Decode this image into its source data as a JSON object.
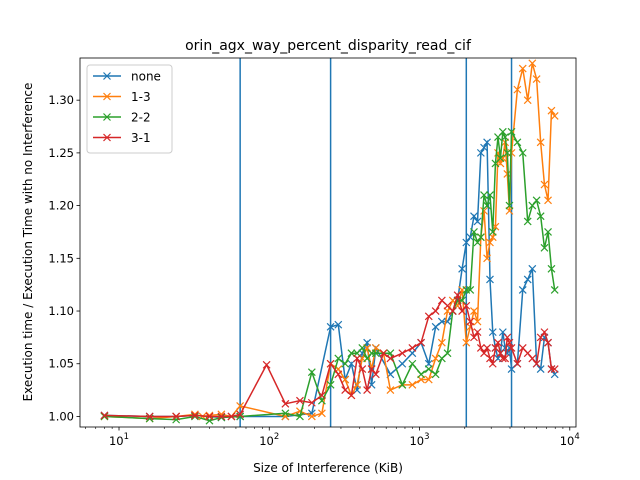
{
  "chart_data": {
    "type": "line",
    "title": "orin_agx_way_percent_disparity_read_cif",
    "xlabel": "Size of Interference (KiB)",
    "ylabel": "Execution time / Execution Time with no Interference",
    "xscale": "log",
    "xlim": [
      5.5,
      11000
    ],
    "ylim": [
      0.99,
      1.34
    ],
    "yticks": [
      1.0,
      1.05,
      1.1,
      1.15,
      1.2,
      1.25,
      1.3
    ],
    "ytick_labels": [
      "1.00",
      "1.05",
      "1.10",
      "1.15",
      "1.20",
      "1.25",
      "1.30"
    ],
    "xticks": [
      10,
      100,
      1000,
      10000
    ],
    "xtick_labels": [
      [
        "10",
        "1"
      ],
      [
        "10",
        "2"
      ],
      [
        "10",
        "3"
      ],
      [
        "10",
        "4"
      ]
    ],
    "vlines": [
      64,
      256,
      2048,
      4096
    ],
    "vline_color": "#1f77b4",
    "legend_position": "upper-left",
    "grid": false,
    "marker": "x",
    "series": [
      {
        "name": "none",
        "color": "#1f77b4",
        "x": [
          8,
          16,
          24,
          32,
          40,
          48,
          56,
          64,
          128,
          192,
          256,
          288,
          320,
          352,
          384,
          416,
          448,
          480,
          512,
          640,
          768,
          896,
          1024,
          1152,
          1280,
          1408,
          1536,
          1664,
          1792,
          1920,
          2048,
          2176,
          2304,
          2432,
          2560,
          2688,
          2816,
          2944,
          3072,
          3200,
          3328,
          3456,
          3584,
          3712,
          3840,
          3968,
          4096,
          4480,
          4864,
          5248,
          5632,
          6016,
          6400,
          6784,
          7168,
          7552,
          7936
        ],
        "y": [
          1.001,
          1.0,
          1.0,
          1.001,
          1.0,
          0.999,
          1.0,
          1.0,
          1.0,
          1.003,
          1.085,
          1.087,
          1.035,
          1.05,
          1.025,
          1.06,
          1.07,
          1.03,
          1.065,
          1.04,
          1.05,
          1.06,
          1.07,
          1.05,
          1.085,
          1.09,
          1.09,
          1.1,
          1.11,
          1.14,
          1.165,
          1.17,
          1.19,
          1.185,
          1.25,
          1.255,
          1.26,
          1.13,
          1.08,
          1.065,
          1.055,
          1.06,
          1.08,
          1.065,
          1.06,
          1.065,
          1.045,
          1.05,
          1.12,
          1.13,
          1.14,
          1.05,
          1.045,
          1.075,
          1.07,
          1.045,
          1.04
        ]
      },
      {
        "name": "1-3",
        "color": "#ff7f0e",
        "x": [
          8,
          16,
          24,
          32,
          36,
          40,
          48,
          56,
          64,
          128,
          160,
          192,
          224,
          256,
          288,
          320,
          352,
          384,
          416,
          448,
          480,
          512,
          576,
          640,
          768,
          896,
          1024,
          1152,
          1280,
          1408,
          1536,
          1664,
          1792,
          1920,
          2048,
          2176,
          2304,
          2432,
          2560,
          2688,
          2816,
          2944,
          3072,
          3200,
          3328,
          3456,
          3584,
          3712,
          3840,
          3968,
          4096,
          4480,
          4864,
          5248,
          5632,
          6016,
          6400,
          6784,
          7168,
          7552,
          7936
        ],
        "y": [
          1.0,
          0.998,
          1.0,
          1.002,
          1.0,
          1.001,
          1.002,
          1.0,
          1.01,
          1.0,
          1.005,
          1.0,
          1.003,
          1.05,
          1.045,
          1.035,
          1.02,
          1.03,
          1.055,
          1.065,
          1.045,
          1.065,
          1.06,
          1.025,
          1.03,
          1.03,
          1.035,
          1.035,
          1.055,
          1.07,
          1.1,
          1.11,
          1.105,
          1.12,
          1.07,
          1.085,
          1.1,
          1.09,
          1.17,
          1.195,
          1.15,
          1.165,
          1.17,
          1.18,
          1.25,
          1.24,
          1.245,
          1.26,
          1.23,
          1.195,
          1.25,
          1.31,
          1.33,
          1.3,
          1.335,
          1.32,
          1.26,
          1.22,
          1.205,
          1.29,
          1.285
        ]
      },
      {
        "name": "2-2",
        "color": "#2ca02c",
        "x": [
          8,
          16,
          24,
          32,
          40,
          48,
          64,
          128,
          160,
          192,
          224,
          256,
          288,
          320,
          352,
          384,
          416,
          448,
          480,
          512,
          640,
          768,
          896,
          1024,
          1152,
          1280,
          1408,
          1536,
          1664,
          1792,
          1920,
          2048,
          2176,
          2304,
          2432,
          2560,
          2688,
          2816,
          2944,
          3072,
          3200,
          3328,
          3456,
          3584,
          3712,
          3840,
          3968,
          4096,
          4480,
          4864,
          5248,
          5632,
          6016,
          6400,
          6784,
          7168,
          7552,
          7936
        ],
        "y": [
          1.0,
          0.998,
          0.997,
          1.0,
          0.996,
          0.999,
          1.0,
          1.003,
          1.0,
          1.042,
          1.015,
          1.03,
          1.055,
          1.05,
          1.06,
          1.06,
          1.065,
          1.055,
          1.06,
          1.06,
          1.06,
          1.03,
          1.05,
          1.04,
          1.045,
          1.04,
          1.055,
          1.06,
          1.1,
          1.11,
          1.11,
          1.12,
          1.12,
          1.175,
          1.165,
          1.17,
          1.21,
          1.2,
          1.21,
          1.175,
          1.24,
          1.265,
          1.245,
          1.27,
          1.265,
          1.25,
          1.2,
          1.27,
          1.26,
          1.25,
          1.185,
          1.2,
          1.205,
          1.19,
          1.16,
          1.175,
          1.14,
          1.12
        ]
      },
      {
        "name": "3-1",
        "color": "#d62728",
        "x": [
          8,
          16,
          24,
          32,
          40,
          48,
          56,
          64,
          96,
          128,
          160,
          192,
          224,
          256,
          288,
          320,
          352,
          384,
          416,
          448,
          480,
          512,
          576,
          640,
          768,
          896,
          1024,
          1152,
          1280,
          1408,
          1536,
          1664,
          1792,
          1920,
          2048,
          2176,
          2304,
          2432,
          2560,
          2688,
          2816,
          2944,
          3072,
          3200,
          3328,
          3456,
          3584,
          3712,
          3840,
          3968,
          4096,
          4480,
          4864,
          5248,
          5632,
          6016,
          6400,
          6784,
          7168,
          7552,
          7936
        ],
        "y": [
          1.001,
          1.0,
          1.0,
          1.001,
          1.0,
          1.0,
          1.0,
          1.002,
          1.049,
          1.012,
          1.015,
          1.013,
          1.02,
          1.05,
          1.04,
          1.025,
          1.02,
          1.055,
          1.045,
          1.025,
          1.045,
          1.04,
          1.06,
          1.055,
          1.06,
          1.065,
          1.07,
          1.095,
          1.1,
          1.11,
          1.105,
          1.1,
          1.115,
          1.1,
          1.105,
          1.09,
          1.075,
          1.08,
          1.065,
          1.06,
          1.065,
          1.055,
          1.05,
          1.065,
          1.07,
          1.06,
          1.055,
          1.055,
          1.075,
          1.07,
          1.065,
          1.05,
          1.065,
          1.06,
          1.055,
          1.05,
          1.075,
          1.08,
          1.07,
          1.045,
          1.045
        ]
      }
    ]
  }
}
